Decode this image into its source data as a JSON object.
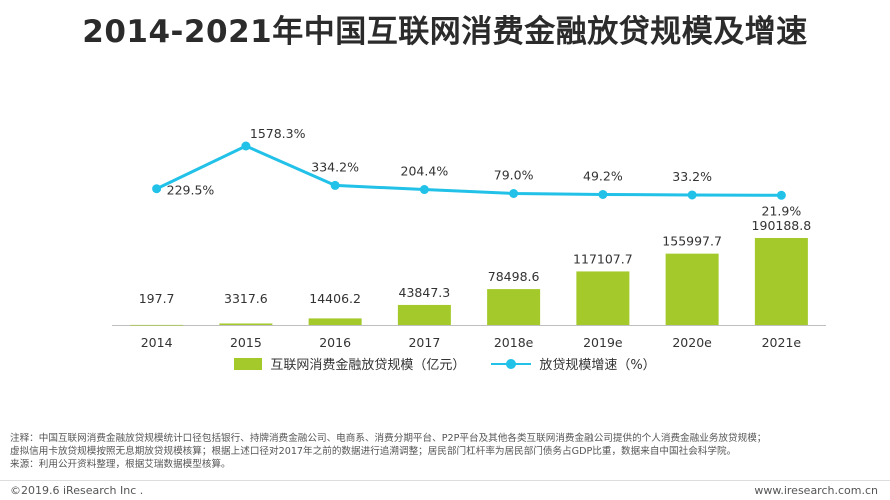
{
  "page": {
    "title": "2014-2021年中国互联网消费金融放贷规模及增速"
  },
  "chart_data": {
    "type": "bar",
    "categories": [
      "2014",
      "2015",
      "2016",
      "2017",
      "2018e",
      "2019e",
      "2020e",
      "2021e"
    ],
    "series": [
      {
        "name": "互联网消费金融放贷规模（亿元）",
        "type": "bar",
        "values": [
          197.7,
          3317.6,
          14406.2,
          43847.3,
          78498.6,
          117107.7,
          155997.7,
          190188.8
        ],
        "labels": [
          "197.7",
          "3317.6",
          "14406.2",
          "43847.3",
          "78498.6",
          "117107.7",
          "155997.7",
          "190188.8"
        ],
        "color": "#a3c92a"
      },
      {
        "name": "放贷规模增速（%）",
        "type": "line",
        "values": [
          229.5,
          1578.3,
          334.2,
          204.4,
          79.0,
          49.2,
          33.2,
          21.9
        ],
        "labels": [
          "229.5%",
          "1578.3%",
          "334.2%",
          "204.4%",
          "79.0%",
          "49.2%",
          "33.2%",
          "21.9%"
        ],
        "color": "#21c1e8"
      }
    ],
    "bar_axis_max": 190188.8,
    "line_axis_range": [
      0,
      1578.3
    ],
    "legend_position": "bottom-center",
    "grid": false
  },
  "notes": {
    "line1": "注释：中国互联网消费金融放贷规模统计口径包括银行、持牌消费金融公司、电商系、消费分期平台、P2P平台及其他各类互联网消费金融公司提供的个人消费金融业务放贷规模；",
    "line2": "虚拟信用卡放贷规模按照无息期放贷规模核算；根据上述口径对2017年之前的数据进行追溯调整；居民部门杠杆率为居民部门债务占GDP比重，数据来自中国社会科学院。",
    "line3": "来源：利用公开资料整理，根据艾瑞数据模型核算。"
  },
  "footer": {
    "copyright": "©2019.6 iResearch Inc .",
    "website": "www.iresearch.com.cn"
  }
}
